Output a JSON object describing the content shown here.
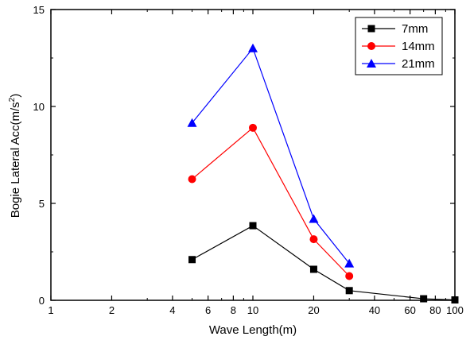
{
  "chart_data": {
    "type": "line",
    "xlabel": "Wave Length(m)",
    "ylabel": "Bogie Lateral Acc(m/s",
    "ylabel_sup": "2",
    "ylabel_end": ")",
    "xscale": "log",
    "xlim": [
      1,
      100
    ],
    "ylim": [
      0,
      15
    ],
    "x_ticks": [
      1,
      2,
      4,
      6,
      8,
      10,
      20,
      40,
      60,
      80,
      100
    ],
    "x_minor_ticks": [
      3,
      5,
      7,
      9,
      30,
      50,
      70,
      90
    ],
    "y_ticks": [
      0,
      5,
      10,
      15
    ],
    "y_minor_step": 2.5,
    "grid": false,
    "legend_position": "top-right",
    "series": [
      {
        "name": "7mm",
        "color": "#000000",
        "marker": "square",
        "x": [
          5,
          10,
          20,
          30,
          70,
          100
        ],
        "y": [
          2.1,
          3.85,
          1.6,
          0.5,
          0.08,
          0.02
        ]
      },
      {
        "name": "14mm",
        "color": "#ff0000",
        "marker": "circle",
        "x": [
          5,
          10,
          20,
          30
        ],
        "y": [
          6.25,
          8.9,
          3.15,
          1.25
        ]
      },
      {
        "name": "21mm",
        "color": "#0000ff",
        "marker": "triangle",
        "x": [
          5,
          10,
          20,
          30
        ],
        "y": [
          9.15,
          13.0,
          4.2,
          1.9
        ]
      }
    ]
  }
}
